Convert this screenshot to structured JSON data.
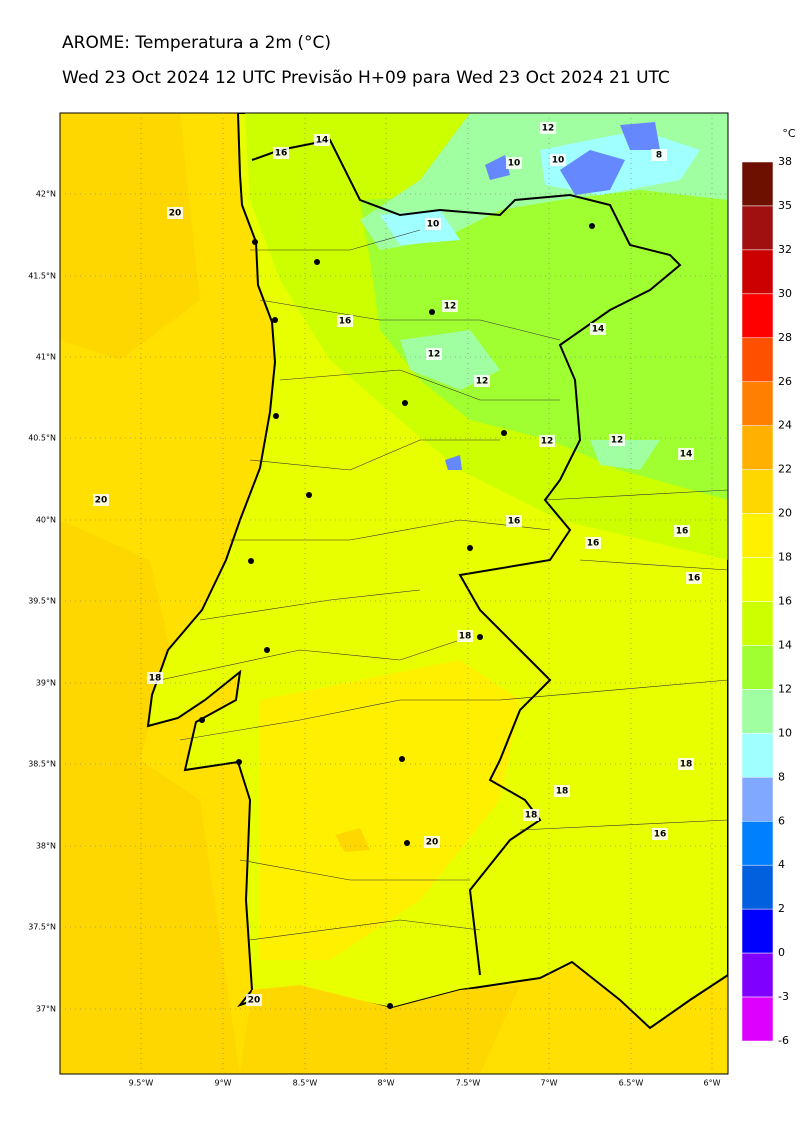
{
  "title": "AROME: Temperatura a 2m (°C)",
  "subtitle": "Wed 23 Oct 2024 12 UTC Previsão H+09 para Wed 23 Oct 2024 21 UTC",
  "lat_labels": [
    "42°N",
    "41.5°N",
    "41°N",
    "40.5°N",
    "40°N",
    "39.5°N",
    "39°N",
    "38.5°N",
    "38°N",
    "37.5°N",
    "37°N"
  ],
  "lon_labels": [
    "9.5°W",
    "9°W",
    "8.5°W",
    "8°W",
    "7.5°W",
    "7°W",
    "6.5°W",
    "6°W"
  ],
  "colorbar": {
    "unit": "°C",
    "ticks": [
      38,
      35,
      32,
      30,
      28,
      26,
      24,
      22,
      20,
      18,
      16,
      14,
      12,
      10,
      8,
      6,
      4,
      2,
      0,
      -3,
      -6
    ],
    "colors": [
      "#6e1000",
      "#a01010",
      "#cc0000",
      "#ff0000",
      "#ff5000",
      "#ff8000",
      "#ffb000",
      "#ffd700",
      "#fff000",
      "#eeff00",
      "#ccff00",
      "#a0ff30",
      "#a0ffa0",
      "#a0ffff",
      "#80a8ff",
      "#0080ff",
      "#0060dd",
      "#0000ff",
      "#8000ff",
      "#dd00ff"
    ]
  },
  "contour_labels": [
    14,
    16,
    12,
    10,
    10,
    8,
    20,
    10,
    12,
    16,
    14,
    12,
    12,
    12,
    12,
    14,
    20,
    16,
    16,
    16,
    16,
    18,
    18,
    18,
    18,
    18,
    20,
    16,
    20
  ]
}
